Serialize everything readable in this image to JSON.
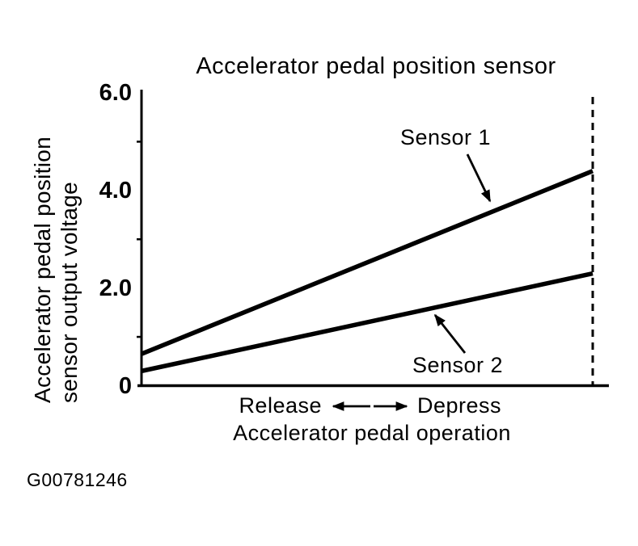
{
  "title": "Accelerator pedal position sensor",
  "figure_id": "G00781246",
  "y_axis": {
    "label_line1": "Accelerator pedal position",
    "label_line2": "sensor output voltage",
    "ticks": [
      {
        "label": "6.0",
        "value": 6.0
      },
      {
        "label": "4.0",
        "value": 4.0
      },
      {
        "label": "2.0",
        "value": 2.0
      },
      {
        "label": "0",
        "value": 0
      }
    ],
    "minor_tick_values": [
      5.0,
      3.0,
      1.0
    ],
    "range": [
      0,
      6
    ]
  },
  "x_axis": {
    "left_label": "Release",
    "right_label": "Depress",
    "label": "Accelerator pedal operation"
  },
  "chart_data": {
    "type": "line",
    "title": "Accelerator pedal position sensor",
    "xlabel": "Accelerator pedal operation (Release ↔ Depress)",
    "ylabel": "Accelerator pedal position sensor output voltage",
    "ylim": [
      0,
      6
    ],
    "yticks": [
      0,
      2.0,
      4.0,
      6.0
    ],
    "x_categories": [
      "Release",
      "Depress"
    ],
    "series": [
      {
        "name": "Sensor 1",
        "x": [
          0,
          1
        ],
        "values": [
          0.65,
          4.4
        ]
      },
      {
        "name": "Sensor 2",
        "x": [
          0,
          1
        ],
        "values": [
          0.3,
          2.3
        ]
      }
    ],
    "grid": false,
    "legend": "annotated-arrows",
    "dashed_guide_at_x": 1
  },
  "colors": {
    "ink": "#000000",
    "background": "#ffffff"
  }
}
